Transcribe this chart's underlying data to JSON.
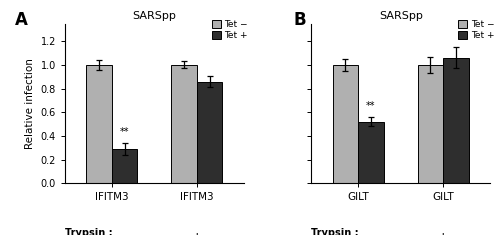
{
  "panel_A": {
    "title": "SARSpp",
    "label": "A",
    "tet_minus": [
      1.0,
      1.0
    ],
    "tet_plus": [
      0.29,
      0.86
    ],
    "tet_minus_err": [
      0.04,
      0.03
    ],
    "tet_plus_err": [
      0.05,
      0.05
    ],
    "significance": [
      "**",
      ""
    ],
    "xlabel_trypsin": [
      "−",
      "+"
    ],
    "xticklabels": [
      "IFITM3",
      "IFITM3"
    ]
  },
  "panel_B": {
    "title": "SARSpp",
    "label": "B",
    "tet_minus": [
      1.0,
      1.0
    ],
    "tet_plus": [
      0.52,
      1.06
    ],
    "tet_minus_err": [
      0.05,
      0.07
    ],
    "tet_plus_err": [
      0.04,
      0.09
    ],
    "significance": [
      "**",
      ""
    ],
    "xlabel_trypsin": [
      "−",
      "+"
    ],
    "xticklabels": [
      "GILT",
      "GILT"
    ]
  },
  "color_tet_minus": "#b0b0b0",
  "color_tet_plus": "#2e2e2e",
  "ylabel": "Relative infection",
  "ylim": [
    0,
    1.35
  ],
  "yticks": [
    0.0,
    0.2,
    0.4,
    0.6,
    0.8,
    1.0,
    1.2
  ],
  "bar_width": 0.3,
  "legend_labels": [
    "Tet −",
    "Tet +"
  ],
  "trypsin_label": "Trypsin :"
}
